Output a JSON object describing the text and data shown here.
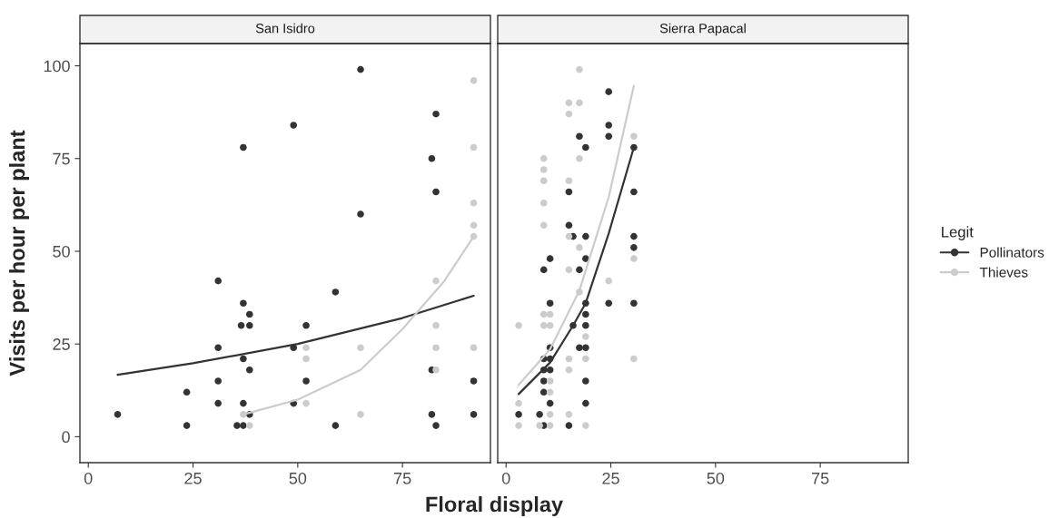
{
  "chart_data": [
    {
      "type": "scatter",
      "title": "San Isidro",
      "xlabel": "Floral display",
      "ylabel": "Visits per hour per plant",
      "xlim": [
        -2,
        96
      ],
      "xticks": [
        0,
        25,
        50,
        75
      ],
      "ylim": [
        -7,
        106
      ],
      "yticks": [
        0,
        25,
        50,
        75,
        100
      ],
      "grid": false,
      "legend": "right",
      "legend_title": "Legit",
      "marker": "circle",
      "series": [
        {
          "name": "Pollinators",
          "color": "#333333",
          "x": [
            7,
            23.5,
            23.5,
            31,
            31,
            31,
            31,
            37,
            37,
            36.5,
            38.5,
            38.5,
            37,
            38.5,
            37,
            38.5,
            35.5,
            37,
            49,
            49,
            49,
            52,
            52,
            59,
            59,
            65,
            65,
            82,
            83,
            83,
            82,
            82,
            83,
            92,
            92
          ],
          "values": [
            6,
            12,
            3,
            42,
            24,
            15,
            9,
            78,
            36,
            30,
            33,
            30,
            21,
            18,
            9,
            6,
            3,
            3,
            84,
            24,
            9,
            30,
            15,
            39,
            3,
            99,
            60,
            75,
            87,
            66,
            18,
            6,
            3,
            15,
            6
          ]
        },
        {
          "name": "Thieves",
          "color": "#cccccc",
          "x": [
            92,
            92,
            92,
            92,
            92,
            83,
            83,
            52,
            65,
            83,
            92,
            52,
            83,
            52,
            37,
            65,
            38.5
          ],
          "values": [
            96,
            78,
            63,
            57,
            54,
            42,
            30,
            24,
            24,
            24,
            24,
            21,
            18,
            9,
            6,
            6,
            3
          ]
        },
        {
          "type": "line",
          "marker": "none",
          "color": "#333333",
          "x": [
            7,
            25,
            50,
            75,
            92
          ],
          "values": [
            16.7,
            19.8,
            25,
            32,
            38
          ]
        },
        {
          "type": "line",
          "marker": "none",
          "color": "#cccccc",
          "x": [
            37,
            50,
            65,
            75,
            85,
            92
          ],
          "values": [
            6,
            10,
            18,
            29,
            42,
            54
          ]
        }
      ]
    },
    {
      "type": "scatter",
      "title": "Sierra Papacal",
      "xlim": [
        -2,
        96
      ],
      "xticks": [
        0,
        25,
        50,
        75
      ],
      "ylim": [
        -7,
        106
      ],
      "tick_labels": "x",
      "grid": false,
      "marker": "circle",
      "series": [
        {
          "color": "#333333",
          "x": [
            24.5,
            24.5,
            24.5,
            17.5,
            19,
            30.5,
            15,
            30.5,
            15,
            16,
            19,
            30.5,
            30.5,
            10.5,
            9,
            17.5,
            19,
            10.5,
            19,
            24.5,
            30.5,
            19,
            16,
            19,
            10.5,
            17.5,
            19,
            9,
            10.5,
            9,
            10.5,
            9,
            19,
            9,
            10.5,
            19,
            3,
            8,
            9,
            15
          ],
          "values": [
            93,
            84,
            81,
            81,
            78,
            78,
            66,
            66,
            57,
            54,
            54,
            54,
            51,
            48,
            45,
            45,
            48,
            36,
            36,
            36,
            36,
            33,
            30,
            30,
            24,
            24,
            24,
            21,
            21,
            18,
            18,
            15,
            15,
            12,
            9,
            9,
            6,
            6,
            3,
            3
          ]
        },
        {
          "color": "#cccccc",
          "x": [
            17.5,
            15,
            17.5,
            15,
            30.5,
            9,
            17.5,
            9,
            9,
            15,
            9,
            9,
            15,
            17.5,
            30.5,
            15,
            24.5,
            17.5,
            9,
            10.5,
            3,
            9,
            10.5,
            19,
            15,
            19,
            30.5,
            15,
            10.5,
            10.5,
            3,
            10.5,
            15,
            3,
            8,
            10.5,
            19
          ],
          "values": [
            99,
            90,
            90,
            87,
            81,
            75,
            75,
            72,
            69,
            69,
            63,
            57,
            54,
            51,
            48,
            45,
            42,
            39,
            33,
            33,
            30,
            30,
            30,
            27,
            21,
            21,
            21,
            18,
            15,
            12,
            9,
            6,
            6,
            3,
            3,
            3,
            3
          ]
        },
        {
          "type": "line",
          "marker": "none",
          "color": "#333333",
          "x": [
            3,
            10.5,
            16,
            19,
            24.5,
            30.5
          ],
          "values": [
            11.5,
            20,
            30,
            36,
            54.8,
            78
          ]
        },
        {
          "type": "line",
          "marker": "none",
          "color": "#cccccc",
          "x": [
            3,
            10.5,
            17.5,
            24.5,
            30.5
          ],
          "values": [
            14,
            23.6,
            39.4,
            64.6,
            94.6
          ]
        }
      ]
    }
  ]
}
